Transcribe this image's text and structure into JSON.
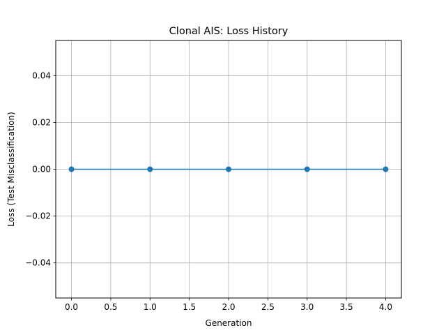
{
  "chart_data": {
    "type": "line",
    "title": "Clonal AIS: Loss History",
    "xlabel": "Generation",
    "ylabel": "Loss (Test Misclassification)",
    "x": [
      0,
      1,
      2,
      3,
      4
    ],
    "series": [
      {
        "values": [
          0,
          0,
          0,
          0,
          0
        ],
        "color": "#1f77b4",
        "marker": "circle"
      }
    ],
    "xlim": [
      -0.2,
      4.2
    ],
    "ylim": [
      -0.055,
      0.055
    ],
    "xticks": [
      0.0,
      0.5,
      1.0,
      1.5,
      2.0,
      2.5,
      3.0,
      3.5,
      4.0
    ],
    "xtick_labels": [
      "0.0",
      "0.5",
      "1.0",
      "1.5",
      "2.0",
      "2.5",
      "3.0",
      "3.5",
      "4.0"
    ],
    "yticks": [
      -0.04,
      -0.02,
      0.0,
      0.02,
      0.04
    ],
    "ytick_labels": [
      "−0.04",
      "−0.02",
      "0.00",
      "0.02",
      "0.04"
    ],
    "grid": true,
    "grid_color": "#b0b0b0"
  }
}
